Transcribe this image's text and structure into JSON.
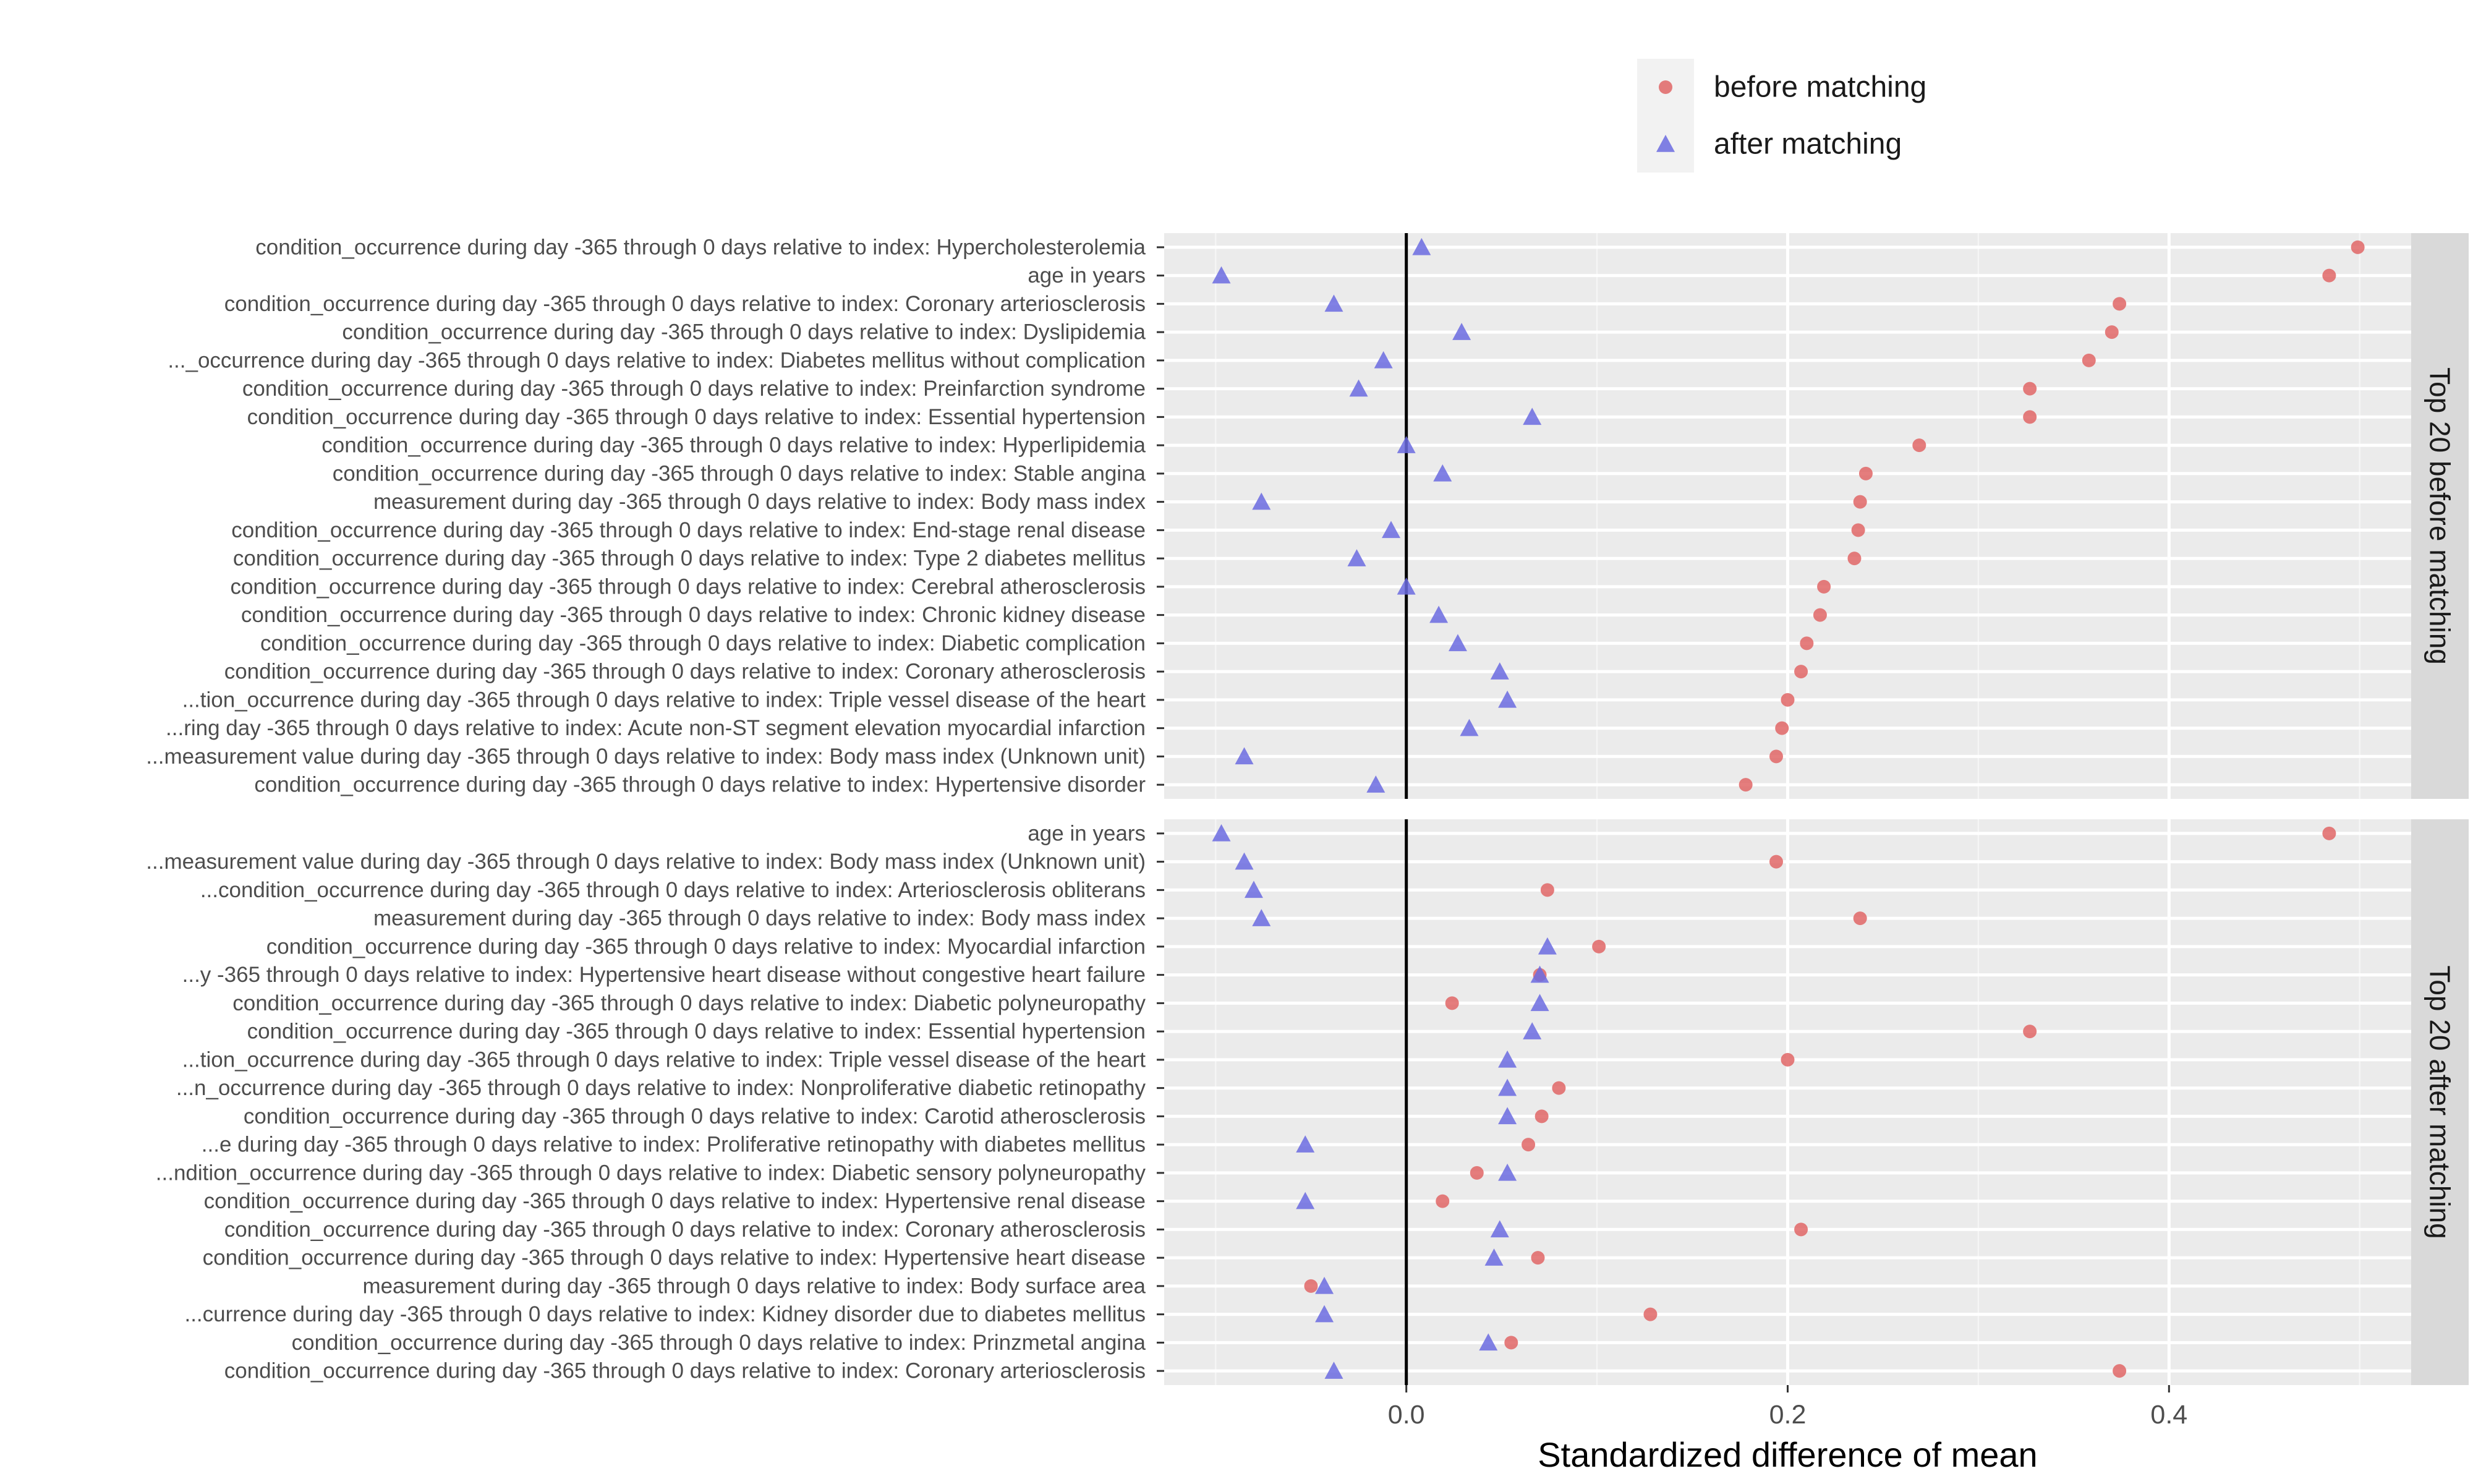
{
  "chart_data": {
    "type": "scatter",
    "xlabel": "Standardized difference of mean",
    "xlim": [
      -0.127,
      0.527
    ],
    "xticks": [
      0.0,
      0.2,
      0.4
    ],
    "xtick_labels": [
      "0.0",
      "0.2",
      "0.4"
    ],
    "grid": true,
    "legend_position": "top",
    "series": [
      {
        "name": "before matching",
        "shape": "circle",
        "color": "#e06666"
      },
      {
        "name": "after matching",
        "shape": "triangle",
        "color": "#6b6be0"
      }
    ],
    "panels": [
      {
        "title": "Top 20 before matching",
        "rows": [
          {
            "label": "condition_occurrence during day -365 through 0 days relative to index: Hypercholesterolemia",
            "before": 0.499,
            "after": 0.008
          },
          {
            "label": "age in years",
            "before": 0.484,
            "after": -0.097
          },
          {
            "label": "condition_occurrence during day -365 through 0 days relative to index: Coronary arteriosclerosis",
            "before": 0.374,
            "after": -0.038
          },
          {
            "label": "condition_occurrence during day -365 through 0 days relative to index: Dyslipidemia",
            "before": 0.37,
            "after": 0.029
          },
          {
            "label": "..._occurrence during day -365 through 0 days relative to index: Diabetes mellitus without complication",
            "before": 0.358,
            "after": -0.012
          },
          {
            "label": "condition_occurrence during day -365 through 0 days relative to index: Preinfarction syndrome",
            "before": 0.327,
            "after": -0.025
          },
          {
            "label": "condition_occurrence during day -365 through 0 days relative to index: Essential hypertension",
            "before": 0.327,
            "after": 0.066
          },
          {
            "label": "condition_occurrence during day -365 through 0 days relative to index: Hyperlipidemia",
            "before": 0.269,
            "after": 0.0
          },
          {
            "label": "condition_occurrence during day -365 through 0 days relative to index: Stable angina",
            "before": 0.241,
            "after": 0.019
          },
          {
            "label": "measurement during day -365 through 0 days relative to index: Body mass index",
            "before": 0.238,
            "after": -0.076
          },
          {
            "label": "condition_occurrence during day -365 through 0 days relative to index: End-stage renal disease",
            "before": 0.237,
            "after": -0.008
          },
          {
            "label": "condition_occurrence during day -365 through 0 days relative to index: Type 2 diabetes mellitus",
            "before": 0.235,
            "after": -0.026
          },
          {
            "label": "condition_occurrence during day -365 through 0 days relative to index: Cerebral atherosclerosis",
            "before": 0.219,
            "after": 0.0
          },
          {
            "label": "condition_occurrence during day -365 through 0 days relative to index: Chronic kidney disease",
            "before": 0.217,
            "after": 0.017
          },
          {
            "label": "condition_occurrence during day -365 through 0 days relative to index: Diabetic complication",
            "before": 0.21,
            "after": 0.027
          },
          {
            "label": "condition_occurrence during day -365 through 0 days relative to index: Coronary atherosclerosis",
            "before": 0.207,
            "after": 0.049
          },
          {
            "label": "...tion_occurrence during day -365 through 0 days relative to index: Triple vessel disease of the heart",
            "before": 0.2,
            "after": 0.053
          },
          {
            "label": "...ring day -365 through 0 days relative to index: Acute non-ST segment elevation myocardial infarction",
            "before": 0.197,
            "after": 0.033
          },
          {
            "label": "...measurement value during day -365 through 0 days relative to index: Body mass index (Unknown unit)",
            "before": 0.194,
            "after": -0.085
          },
          {
            "label": "condition_occurrence during day -365 through 0 days relative to index: Hypertensive disorder",
            "before": 0.178,
            "after": -0.016
          }
        ]
      },
      {
        "title": "Top 20 after matching",
        "rows": [
          {
            "label": "age in years",
            "before": 0.484,
            "after": -0.097
          },
          {
            "label": "...measurement value during day -365 through 0 days relative to index: Body mass index (Unknown unit)",
            "before": 0.194,
            "after": -0.085
          },
          {
            "label": "...condition_occurrence during day -365 through 0 days relative to index: Arteriosclerosis obliterans",
            "before": 0.074,
            "after": -0.08
          },
          {
            "label": "measurement during day -365 through 0 days relative to index: Body mass index",
            "before": 0.238,
            "after": -0.076
          },
          {
            "label": "condition_occurrence during day -365 through 0 days relative to index: Myocardial infarction",
            "before": 0.101,
            "after": 0.074
          },
          {
            "label": "...y -365 through 0 days relative to index: Hypertensive heart disease without congestive heart failure",
            "before": 0.07,
            "after": 0.07
          },
          {
            "label": "condition_occurrence during day -365 through 0 days relative to index: Diabetic polyneuropathy",
            "before": 0.024,
            "after": 0.07
          },
          {
            "label": "condition_occurrence during day -365 through 0 days relative to index: Essential hypertension",
            "before": 0.327,
            "after": 0.066
          },
          {
            "label": "...tion_occurrence during day -365 through 0 days relative to index: Triple vessel disease of the heart",
            "before": 0.2,
            "after": 0.053
          },
          {
            "label": "...n_occurrence during day -365 through 0 days relative to index: Nonproliferative diabetic retinopathy",
            "before": 0.08,
            "after": 0.053
          },
          {
            "label": "condition_occurrence during day -365 through 0 days relative to index: Carotid atherosclerosis",
            "before": 0.071,
            "after": 0.053
          },
          {
            "label": "...e during day -365 through 0 days relative to index: Proliferative retinopathy with diabetes mellitus",
            "before": 0.064,
            "after": -0.053
          },
          {
            "label": "...ndition_occurrence during day -365 through 0 days relative to index: Diabetic sensory polyneuropathy",
            "before": 0.037,
            "after": 0.053
          },
          {
            "label": "condition_occurrence during day -365 through 0 days relative to index: Hypertensive renal disease",
            "before": 0.019,
            "after": -0.053
          },
          {
            "label": "condition_occurrence during day -365 through 0 days relative to index: Coronary atherosclerosis",
            "before": 0.207,
            "after": 0.049
          },
          {
            "label": "condition_occurrence during day -365 through 0 days relative to index: Hypertensive heart disease",
            "before": 0.069,
            "after": 0.046
          },
          {
            "label": "measurement during day -365 through 0 days relative to index: Body surface area",
            "before": -0.05,
            "after": -0.043
          },
          {
            "label": "...currence during day -365 through 0 days relative to index: Kidney disorder due to diabetes mellitus",
            "before": 0.128,
            "after": -0.043
          },
          {
            "label": "condition_occurrence during day -365 through 0 days relative to index: Prinzmetal angina",
            "before": 0.055,
            "after": 0.043
          },
          {
            "label": "condition_occurrence during day -365 through 0 days relative to index: Coronary arteriosclerosis",
            "before": 0.374,
            "after": -0.038
          }
        ]
      }
    ]
  }
}
